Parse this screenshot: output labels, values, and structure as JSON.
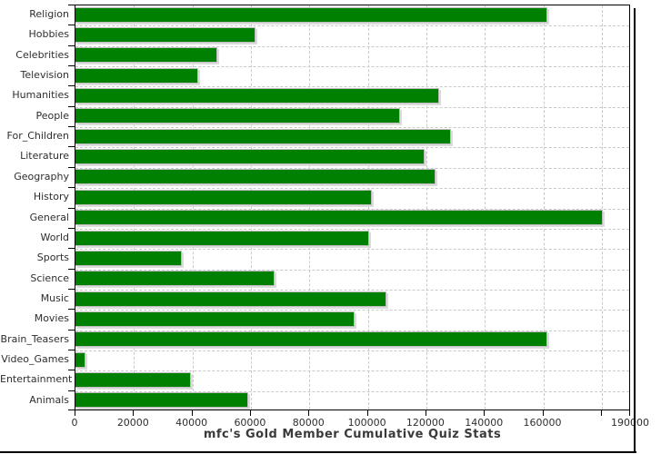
{
  "colors": {
    "bar_fill": "#008000",
    "bar_border": "#bdbdbd",
    "grid": "#c9c9c9",
    "axis": "#000000",
    "text": "#2e2e2e"
  },
  "chart_data": {
    "type": "bar",
    "orientation": "horizontal",
    "title": "mfc's Gold Member Cumulative Quiz Stats",
    "xlabel": "",
    "ylabel": "",
    "grid": true,
    "legend": false,
    "xlim": [
      0,
      190000
    ],
    "xticks": [
      0,
      20000,
      40000,
      60000,
      80000,
      100000,
      120000,
      140000,
      160000,
      180000,
      190000
    ],
    "xtick_labels": [
      "0",
      "20000",
      "40000",
      "60000",
      "80000",
      "100000",
      "120000",
      "140000",
      "160000",
      "",
      "190000"
    ],
    "categories": [
      "Religion",
      "Hobbies",
      "Celebrities",
      "Television",
      "Humanities",
      "People",
      "For_Children",
      "Literature",
      "Geography",
      "History",
      "General",
      "World",
      "Sports",
      "Science",
      "Music",
      "Movies",
      "Brain_Teasers",
      "Video_Games",
      "Entertainment",
      "Animals"
    ],
    "values": [
      161500,
      61500,
      48500,
      42000,
      124500,
      111000,
      128500,
      119500,
      123000,
      101500,
      180500,
      100500,
      36500,
      68000,
      106500,
      95500,
      161500,
      3500,
      39500,
      59000
    ]
  }
}
